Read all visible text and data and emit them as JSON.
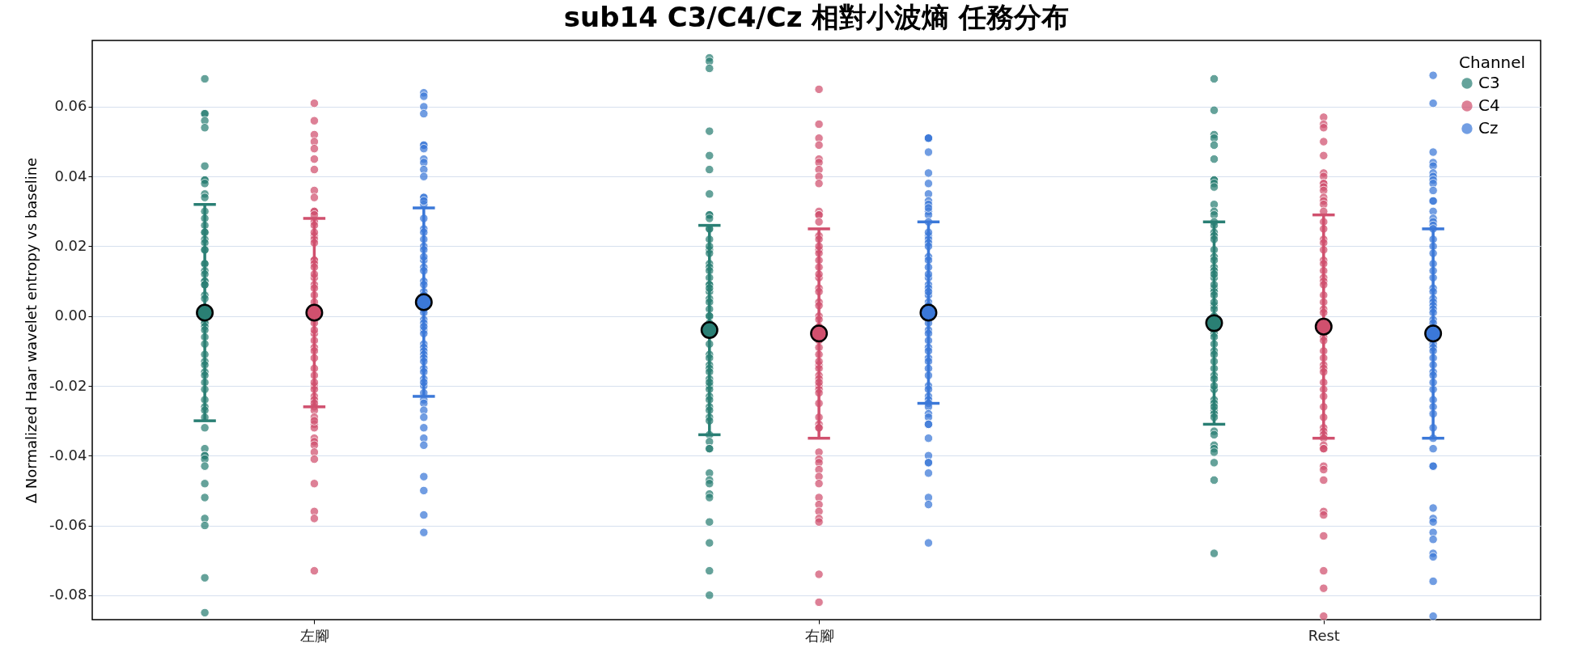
{
  "chart_data": {
    "type": "scatter",
    "title": "sub14 C3/C4/Cz 相對小波熵 任務分布",
    "ylabel": "Δ Normalized Haar wavelet entropy vs baseline",
    "legend_title": "Channel",
    "legend": "top right",
    "grid": "y",
    "marker": "circle",
    "categories": [
      "左腳",
      "右腳",
      "Rest"
    ],
    "ylim": [
      -0.087,
      0.079
    ],
    "yticks": [
      -0.08,
      -0.06,
      -0.04,
      -0.02,
      {
        "value": 0,
        "label": "0.00"
      },
      0.02,
      0.04,
      0.06
    ],
    "series": [
      {
        "name": "C3",
        "color": "#2a7f74",
        "x": [
          "左腳",
          "左腳",
          "左腳",
          "左腳",
          "左腳",
          "左腳",
          "左腳",
          "左腳",
          "左腳",
          "左腳",
          "左腳",
          "左腳",
          "左腳",
          "左腳",
          "左腳",
          "左腳",
          "左腳",
          "左腳",
          "左腳",
          "左腳",
          "左腳",
          "左腳",
          "左腳",
          "左腳",
          "左腳",
          "左腳",
          "左腳",
          "左腳",
          "左腳",
          "左腳",
          "左腳",
          "左腳",
          "左腳",
          "左腳",
          "左腳",
          "左腳",
          "左腳",
          "左腳",
          "左腳",
          "左腳",
          "左腳",
          "左腳",
          "左腳",
          "左腳",
          "左腳",
          "左腳",
          "左腳",
          "左腳",
          "左腳",
          "左腳",
          "左腳",
          "左腳",
          "左腳",
          "左腳",
          "左腳",
          "左腳",
          "左腳",
          "左腳",
          "左腳",
          "右腳",
          "右腳",
          "右腳",
          "右腳",
          "右腳",
          "右腳",
          "右腳",
          "右腳",
          "右腳",
          "右腳",
          "右腳",
          "右腳",
          "右腳",
          "右腳",
          "右腳",
          "右腳",
          "右腳",
          "右腳",
          "右腳",
          "右腳",
          "右腳",
          "右腳",
          "右腳",
          "右腳",
          "右腳",
          "右腳",
          "右腳",
          "右腳",
          "右腳",
          "右腳",
          "右腳",
          "右腳",
          "右腳",
          "右腳",
          "右腳",
          "右腳",
          "右腳",
          "右腳",
          "右腳",
          "右腳",
          "右腳",
          "右腳",
          "右腳",
          "右腳",
          "右腳",
          "右腳",
          "右腳",
          "右腳",
          "右腳",
          "右腳",
          "右腳",
          "右腳",
          "右腳",
          "右腳",
          "右腳",
          "右腳",
          "右腳",
          "右腳",
          "右腳",
          "Rest",
          "Rest",
          "Rest",
          "Rest",
          "Rest",
          "Rest",
          "Rest",
          "Rest",
          "Rest",
          "Rest",
          "Rest",
          "Rest",
          "Rest",
          "Rest",
          "Rest",
          "Rest",
          "Rest",
          "Rest",
          "Rest",
          "Rest",
          "Rest",
          "Rest",
          "Rest",
          "Rest",
          "Rest",
          "Rest",
          "Rest",
          "Rest",
          "Rest",
          "Rest",
          "Rest",
          "Rest",
          "Rest",
          "Rest",
          "Rest",
          "Rest",
          "Rest",
          "Rest",
          "Rest",
          "Rest",
          "Rest",
          "Rest",
          "Rest",
          "Rest",
          "Rest",
          "Rest",
          "Rest",
          "Rest",
          "Rest",
          "Rest",
          "Rest",
          "Rest",
          "Rest",
          "Rest",
          "Rest",
          "Rest",
          "Rest",
          "Rest"
        ],
        "values": [
          0.068,
          0.058,
          0.058,
          0.056,
          0.054,
          0.043,
          0.039,
          0.039,
          0.038,
          0.035,
          0.034,
          0.03,
          0.028,
          0.026,
          0.024,
          0.024,
          0.022,
          0.021,
          0.019,
          0.019,
          0.015,
          0.015,
          0.013,
          0.012,
          0.01,
          0.01,
          0.009,
          0.009,
          0.006,
          0.005,
          -0.002,
          -0.002,
          -0.003,
          -0.004,
          -0.006,
          -0.008,
          -0.011,
          -0.013,
          -0.014,
          -0.016,
          -0.017,
          -0.019,
          -0.021,
          -0.024,
          -0.026,
          -0.027,
          -0.029,
          -0.032,
          -0.038,
          -0.04,
          -0.04,
          -0.041,
          -0.043,
          -0.048,
          -0.052,
          -0.058,
          -0.06,
          -0.075,
          -0.085,
          0.074,
          0.073,
          0.071,
          0.053,
          0.046,
          0.042,
          0.035,
          0.029,
          0.029,
          0.028,
          0.025,
          0.025,
          0.022,
          0.019,
          0.018,
          0.015,
          0.014,
          0.013,
          0.011,
          0.009,
          0.009,
          0.007,
          0.005,
          0.004,
          0.002,
          0.0,
          0.0,
          -0.002,
          -0.008,
          -0.011,
          -0.012,
          -0.014,
          -0.015,
          -0.016,
          -0.018,
          -0.02,
          -0.021,
          -0.023,
          -0.024,
          -0.026,
          -0.027,
          -0.029,
          -0.03,
          -0.034,
          -0.036,
          -0.038,
          -0.038,
          -0.045,
          -0.047,
          -0.048,
          -0.051,
          -0.052,
          -0.059,
          -0.065,
          -0.073,
          -0.08,
          0.02,
          0.008,
          -0.019,
          0.068,
          0.059,
          0.052,
          0.051,
          0.049,
          0.045,
          0.039,
          0.039,
          0.038,
          0.037,
          0.032,
          0.03,
          0.029,
          0.027,
          0.026,
          0.024,
          0.023,
          0.022,
          0.019,
          0.017,
          0.014,
          0.013,
          0.011,
          0.008,
          0.007,
          0.006,
          0.003,
          0.002,
          0.0,
          -0.005,
          -0.006,
          -0.008,
          -0.01,
          -0.011,
          -0.015,
          -0.017,
          -0.018,
          -0.021,
          -0.024,
          -0.025,
          -0.027,
          -0.028,
          -0.029,
          -0.033,
          -0.034,
          -0.037,
          -0.038,
          -0.039,
          -0.042,
          -0.047,
          -0.068,
          0.016,
          0.012,
          0.009,
          0.004,
          -0.013,
          -0.02,
          -0.026
        ]
      },
      {
        "name": "C4",
        "color": "#d0506e",
        "x": [
          "左腳",
          "左腳",
          "左腳",
          "左腳",
          "左腳",
          "左腳",
          "左腳",
          "左腳",
          "左腳",
          "左腳",
          "左腳",
          "左腳",
          "左腳",
          "左腳",
          "左腳",
          "左腳",
          "左腳",
          "左腳",
          "左腳",
          "左腳",
          "左腳",
          "左腳",
          "左腳",
          "左腳",
          "左腳",
          "左腳",
          "左腳",
          "左腳",
          "左腳",
          "左腳",
          "左腳",
          "左腳",
          "左腳",
          "左腳",
          "左腳",
          "左腳",
          "左腳",
          "左腳",
          "左腳",
          "左腳",
          "左腳",
          "左腳",
          "左腳",
          "左腳",
          "左腳",
          "左腳",
          "左腳",
          "左腳",
          "左腳",
          "左腳",
          "左腳",
          "左腳",
          "左腳",
          "左腳",
          "左腳",
          "左腳",
          "左腳",
          "左腳",
          "右腳",
          "右腳",
          "右腳",
          "右腳",
          "右腳",
          "右腳",
          "右腳",
          "右腳",
          "右腳",
          "右腳",
          "右腳",
          "右腳",
          "右腳",
          "右腳",
          "右腳",
          "右腳",
          "右腳",
          "右腳",
          "右腳",
          "右腳",
          "右腳",
          "右腳",
          "右腳",
          "右腳",
          "右腳",
          "右腳",
          "右腳",
          "右腳",
          "右腳",
          "右腳",
          "右腳",
          "右腳",
          "右腳",
          "右腳",
          "右腳",
          "右腳",
          "右腳",
          "右腳",
          "右腳",
          "右腳",
          "右腳",
          "右腳",
          "右腳",
          "右腳",
          "右腳",
          "右腳",
          "右腳",
          "右腳",
          "右腳",
          "右腳",
          "右腳",
          "右腳",
          "右腳",
          "右腳",
          "右腳",
          "右腳",
          "右腳",
          "右腳",
          "右腳",
          "Rest",
          "Rest",
          "Rest",
          "Rest",
          "Rest",
          "Rest",
          "Rest",
          "Rest",
          "Rest",
          "Rest",
          "Rest",
          "Rest",
          "Rest",
          "Rest",
          "Rest",
          "Rest",
          "Rest",
          "Rest",
          "Rest",
          "Rest",
          "Rest",
          "Rest",
          "Rest",
          "Rest",
          "Rest",
          "Rest",
          "Rest",
          "Rest",
          "Rest",
          "Rest",
          "Rest",
          "Rest",
          "Rest",
          "Rest",
          "Rest",
          "Rest",
          "Rest",
          "Rest",
          "Rest",
          "Rest",
          "Rest",
          "Rest",
          "Rest",
          "Rest",
          "Rest",
          "Rest",
          "Rest",
          "Rest",
          "Rest",
          "Rest",
          "Rest",
          "Rest",
          "Rest",
          "Rest",
          "Rest",
          "Rest",
          "Rest",
          "Rest"
        ],
        "values": [
          0.061,
          0.056,
          0.052,
          0.05,
          0.048,
          0.045,
          0.042,
          0.036,
          0.034,
          0.03,
          0.03,
          0.027,
          0.026,
          0.023,
          0.022,
          0.021,
          0.016,
          0.016,
          0.015,
          0.014,
          0.011,
          0.009,
          0.008,
          0.006,
          -0.002,
          -0.005,
          -0.007,
          -0.009,
          -0.01,
          -0.015,
          -0.017,
          -0.02,
          -0.021,
          -0.023,
          -0.024,
          -0.026,
          -0.027,
          -0.029,
          -0.031,
          -0.032,
          -0.035,
          -0.036,
          -0.037,
          -0.039,
          -0.041,
          -0.048,
          -0.056,
          -0.058,
          -0.073,
          0.029,
          0.024,
          0.012,
          0.004,
          -0.004,
          -0.012,
          -0.019,
          -0.025,
          -0.03,
          0.065,
          0.055,
          0.051,
          0.049,
          0.045,
          0.044,
          0.042,
          0.04,
          0.038,
          0.03,
          0.029,
          0.029,
          0.027,
          0.023,
          0.022,
          0.019,
          0.018,
          0.016,
          0.014,
          0.011,
          0.008,
          0.007,
          0.004,
          0.003,
          0.0,
          -0.001,
          -0.003,
          -0.007,
          -0.009,
          -0.011,
          -0.014,
          -0.015,
          -0.017,
          -0.018,
          -0.02,
          -0.021,
          -0.022,
          -0.025,
          -0.029,
          -0.031,
          -0.032,
          -0.039,
          -0.041,
          -0.042,
          -0.044,
          -0.046,
          -0.048,
          -0.052,
          -0.054,
          -0.056,
          -0.058,
          -0.059,
          -0.074,
          -0.082,
          0.02,
          0.012,
          -0.013,
          -0.019,
          -0.032,
          0.057,
          0.055,
          0.054,
          0.05,
          0.046,
          0.041,
          0.04,
          0.038,
          0.038,
          0.037,
          0.036,
          0.034,
          0.033,
          0.032,
          0.03,
          0.027,
          0.025,
          0.022,
          0.021,
          0.019,
          0.016,
          0.015,
          0.013,
          0.011,
          0.01,
          0.009,
          0.006,
          0.004,
          0.002,
          0.001,
          -0.006,
          -0.007,
          -0.01,
          -0.012,
          -0.014,
          -0.015,
          -0.016,
          -0.019,
          -0.021,
          -0.023,
          -0.032,
          -0.033,
          -0.034,
          -0.035,
          -0.037,
          -0.038,
          -0.038,
          -0.043,
          -0.044,
          -0.047,
          -0.056,
          -0.057,
          -0.063,
          -0.073,
          -0.078,
          -0.086,
          -0.026,
          -0.029
        ]
      },
      {
        "name": "Cz",
        "color": "#3b78d8",
        "x": [
          "左腳",
          "左腳",
          "左腳",
          "左腳",
          "左腳",
          "左腳",
          "左腳",
          "左腳",
          "左腳",
          "左腳",
          "左腳",
          "左腳",
          "左腳",
          "左腳",
          "左腳",
          "左腳",
          "左腳",
          "左腳",
          "左腳",
          "左腳",
          "左腳",
          "左腳",
          "左腳",
          "左腳",
          "左腳",
          "左腳",
          "左腳",
          "左腳",
          "左腳",
          "左腳",
          "左腳",
          "左腳",
          "左腳",
          "左腳",
          "左腳",
          "左腳",
          "左腳",
          "左腳",
          "左腳",
          "左腳",
          "左腳",
          "左腳",
          "左腳",
          "左腳",
          "左腳",
          "左腳",
          "左腳",
          "左腳",
          "左腳",
          "左腳",
          "左腳",
          "左腳",
          "左腳",
          "左腳",
          "左腳",
          "左腳",
          "左腳",
          "左腳",
          "左腳",
          "右腳",
          "右腳",
          "右腳",
          "右腳",
          "右腳",
          "右腳",
          "右腳",
          "右腳",
          "右腳",
          "右腳",
          "右腳",
          "右腳",
          "右腳",
          "右腳",
          "右腳",
          "右腳",
          "右腳",
          "右腳",
          "右腳",
          "右腳",
          "右腳",
          "右腳",
          "右腳",
          "右腳",
          "右腳",
          "右腳",
          "右腳",
          "右腳",
          "右腳",
          "右腳",
          "右腳",
          "右腳",
          "右腳",
          "右腳",
          "右腳",
          "右腳",
          "右腳",
          "右腳",
          "右腳",
          "右腳",
          "右腳",
          "右腳",
          "右腳",
          "右腳",
          "右腳",
          "右腳",
          "右腳",
          "右腳",
          "右腳",
          "右腳",
          "右腳",
          "右腳",
          "右腳",
          "右腳",
          "右腳",
          "右腳",
          "右腳",
          "Rest",
          "Rest",
          "Rest",
          "Rest",
          "Rest",
          "Rest",
          "Rest",
          "Rest",
          "Rest",
          "Rest",
          "Rest",
          "Rest",
          "Rest",
          "Rest",
          "Rest",
          "Rest",
          "Rest",
          "Rest",
          "Rest",
          "Rest",
          "Rest",
          "Rest",
          "Rest",
          "Rest",
          "Rest",
          "Rest",
          "Rest",
          "Rest",
          "Rest",
          "Rest",
          "Rest",
          "Rest",
          "Rest",
          "Rest",
          "Rest",
          "Rest",
          "Rest",
          "Rest",
          "Rest",
          "Rest",
          "Rest",
          "Rest",
          "Rest",
          "Rest",
          "Rest",
          "Rest",
          "Rest",
          "Rest",
          "Rest",
          "Rest",
          "Rest",
          "Rest",
          "Rest",
          "Rest",
          "Rest",
          "Rest",
          "Rest",
          "Rest"
        ],
        "values": [
          0.064,
          0.063,
          0.06,
          0.058,
          0.049,
          0.049,
          0.048,
          0.045,
          0.044,
          0.042,
          0.04,
          0.034,
          0.034,
          0.032,
          0.028,
          0.025,
          0.024,
          0.022,
          0.02,
          0.019,
          0.016,
          0.014,
          0.013,
          0.01,
          0.007,
          0.006,
          0.002,
          0.001,
          -0.001,
          -0.002,
          -0.004,
          -0.005,
          -0.008,
          -0.009,
          -0.01,
          -0.011,
          -0.012,
          -0.015,
          -0.016,
          -0.018,
          -0.02,
          -0.022,
          -0.024,
          -0.025,
          -0.027,
          -0.029,
          -0.032,
          -0.035,
          -0.037,
          -0.046,
          -0.05,
          -0.057,
          -0.062,
          0.033,
          0.017,
          0.009,
          -0.003,
          -0.013,
          -0.019,
          0.051,
          0.051,
          0.051,
          0.047,
          0.041,
          0.038,
          0.035,
          0.033,
          0.032,
          0.03,
          0.029,
          0.027,
          0.023,
          0.022,
          0.021,
          0.02,
          0.017,
          0.016,
          0.014,
          0.011,
          0.009,
          0.008,
          0.006,
          0.004,
          0.003,
          -0.002,
          -0.004,
          -0.005,
          -0.007,
          -0.009,
          -0.012,
          -0.013,
          -0.015,
          -0.02,
          -0.021,
          -0.023,
          -0.024,
          -0.025,
          -0.026,
          -0.028,
          -0.029,
          -0.031,
          -0.031,
          -0.035,
          -0.04,
          -0.042,
          -0.042,
          -0.045,
          -0.052,
          -0.054,
          -0.065,
          0.031,
          0.024,
          0.012,
          0.007,
          -0.01,
          -0.017,
          0.069,
          0.061,
          0.047,
          0.044,
          0.043,
          0.041,
          0.04,
          0.039,
          0.038,
          0.036,
          0.033,
          0.033,
          0.03,
          0.028,
          0.027,
          0.026,
          0.025,
          0.022,
          0.02,
          0.018,
          0.015,
          0.011,
          0.008,
          0.007,
          0.005,
          0.004,
          0.003,
          0.002,
          0.001,
          -0.001,
          -0.002,
          -0.008,
          -0.009,
          -0.01,
          -0.012,
          -0.014,
          -0.016,
          -0.017,
          -0.021,
          -0.024,
          -0.026,
          -0.028,
          -0.032,
          -0.035,
          -0.038,
          -0.043,
          -0.043,
          -0.055,
          -0.058,
          -0.059,
          -0.062,
          -0.064,
          -0.068,
          -0.069,
          -0.076,
          -0.086,
          0.013,
          -0.019
        ]
      },
      {
        "color": "#2a7f74",
        "x": [
          "左腳",
          "右腳",
          "Rest"
        ],
        "values": [
          0.001,
          -0.004,
          -0.002
        ],
        "errors": [
          0.031,
          0.03,
          0.029
        ]
      },
      {
        "color": "#d0506e",
        "x": [
          "左腳",
          "右腳",
          "Rest"
        ],
        "values": [
          0.001,
          -0.005,
          -0.003
        ],
        "errors": [
          0.027,
          0.03,
          0.032
        ]
      },
      {
        "color": "#3b78d8",
        "x": [
          "左腳",
          "右腳",
          "Rest"
        ],
        "values": [
          0.004,
          0.001,
          -0.005
        ],
        "errors": [
          0.027,
          0.026,
          0.03
        ]
      }
    ]
  }
}
